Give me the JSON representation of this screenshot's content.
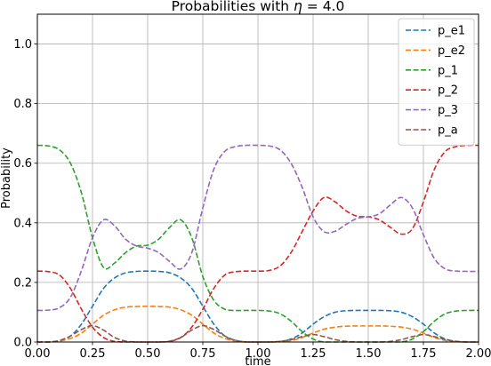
{
  "chart_data": {
    "type": "line",
    "title_prefix": "Probabilities with ",
    "title_symbol": "η",
    "title_suffix": " = 4.0",
    "xlabel": "time",
    "ylabel": "Probability",
    "xlim": [
      0.0,
      2.0
    ],
    "ylim": [
      0.0,
      1.1
    ],
    "xticks": [
      0.0,
      0.25,
      0.5,
      0.75,
      1.0,
      1.25,
      1.5,
      1.75,
      2.0
    ],
    "xtick_labels": [
      "0.00",
      "0.25",
      "0.50",
      "0.75",
      "1.00",
      "1.25",
      "1.50",
      "1.75",
      "2.00"
    ],
    "yticks": [
      0.0,
      0.2,
      0.4,
      0.6,
      0.8,
      1.0
    ],
    "ytick_labels": [
      "0.0",
      "0.2",
      "0.4",
      "0.6",
      "0.8",
      "1.0"
    ],
    "grid": true,
    "legend_position": "top-right",
    "line_style": "dashed",
    "series": [
      {
        "name": "p_e1",
        "color": "#1f77b4",
        "x": [
          0.0,
          0.05,
          0.1,
          0.15,
          0.2,
          0.25,
          0.3,
          0.35,
          0.4,
          0.45,
          0.5,
          0.55,
          0.6,
          0.65,
          0.7,
          0.75,
          0.8,
          0.85,
          0.9,
          0.95,
          1.0,
          1.05,
          1.1,
          1.15,
          1.2,
          1.25,
          1.3,
          1.35,
          1.4,
          1.45,
          1.5,
          1.55,
          1.6,
          1.65,
          1.7,
          1.75,
          1.8,
          1.85,
          1.9,
          1.95,
          2.0
        ],
        "y": [
          0.0,
          0.0,
          0.005,
          0.02,
          0.06,
          0.12,
          0.18,
          0.215,
          0.232,
          0.237,
          0.238,
          0.237,
          0.232,
          0.215,
          0.18,
          0.12,
          0.06,
          0.02,
          0.005,
          0.0,
          0.0,
          0.0,
          0.002,
          0.01,
          0.03,
          0.06,
          0.085,
          0.1,
          0.105,
          0.106,
          0.106,
          0.106,
          0.105,
          0.1,
          0.085,
          0.06,
          0.03,
          0.01,
          0.002,
          0.0,
          0.0
        ]
      },
      {
        "name": "p_e2",
        "color": "#ff7f0e",
        "x": [
          0.0,
          0.05,
          0.1,
          0.15,
          0.2,
          0.25,
          0.3,
          0.35,
          0.4,
          0.45,
          0.5,
          0.55,
          0.6,
          0.65,
          0.7,
          0.75,
          0.8,
          0.85,
          0.9,
          0.95,
          1.0,
          1.05,
          1.1,
          1.15,
          1.2,
          1.25,
          1.3,
          1.35,
          1.4,
          1.45,
          1.5,
          1.55,
          1.6,
          1.65,
          1.7,
          1.75,
          1.8,
          1.85,
          1.9,
          1.95,
          2.0
        ],
        "y": [
          0.0,
          0.0,
          0.003,
          0.012,
          0.03,
          0.06,
          0.09,
          0.108,
          0.117,
          0.119,
          0.12,
          0.119,
          0.117,
          0.108,
          0.09,
          0.06,
          0.03,
          0.012,
          0.003,
          0.0,
          0.0,
          0.0,
          0.001,
          0.005,
          0.015,
          0.03,
          0.043,
          0.05,
          0.053,
          0.054,
          0.054,
          0.054,
          0.053,
          0.05,
          0.043,
          0.03,
          0.015,
          0.005,
          0.001,
          0.0,
          0.0
        ]
      },
      {
        "name": "p_1",
        "color": "#2ca02c",
        "x": [
          0.0,
          0.05,
          0.1,
          0.15,
          0.2,
          0.25,
          0.3,
          0.35,
          0.4,
          0.45,
          0.5,
          0.55,
          0.6,
          0.65,
          0.7,
          0.75,
          0.8,
          0.85,
          0.9,
          0.95,
          1.0,
          1.05,
          1.1,
          1.15,
          1.2,
          1.25,
          1.3,
          1.35,
          1.4,
          1.45,
          1.5,
          1.55,
          1.6,
          1.65,
          1.7,
          1.75,
          1.8,
          1.85,
          1.9,
          1.95,
          2.0
        ],
        "y": [
          0.66,
          0.658,
          0.645,
          0.6,
          0.5,
          0.35,
          0.25,
          0.265,
          0.3,
          0.322,
          0.325,
          0.345,
          0.385,
          0.41,
          0.35,
          0.22,
          0.14,
          0.11,
          0.106,
          0.106,
          0.106,
          0.104,
          0.095,
          0.07,
          0.035,
          0.01,
          0.0,
          0.0,
          0.0,
          0.0,
          0.0,
          0.0,
          0.0,
          0.0,
          0.01,
          0.035,
          0.07,
          0.095,
          0.104,
          0.106,
          0.106
        ]
      },
      {
        "name": "p_2",
        "color": "#d62728",
        "x": [
          0.0,
          0.05,
          0.1,
          0.15,
          0.2,
          0.25,
          0.3,
          0.35,
          0.4,
          0.45,
          0.5,
          0.55,
          0.6,
          0.65,
          0.7,
          0.75,
          0.8,
          0.85,
          0.9,
          0.95,
          1.0,
          1.05,
          1.1,
          1.15,
          1.2,
          1.25,
          1.3,
          1.35,
          1.4,
          1.45,
          1.5,
          1.55,
          1.6,
          1.65,
          1.7,
          1.75,
          1.8,
          1.85,
          1.9,
          1.95,
          2.0
        ],
        "y": [
          0.238,
          0.236,
          0.225,
          0.18,
          0.11,
          0.05,
          0.015,
          0.002,
          0.0,
          0.0,
          0.0,
          0.0,
          0.002,
          0.015,
          0.05,
          0.11,
          0.18,
          0.225,
          0.236,
          0.238,
          0.238,
          0.24,
          0.255,
          0.3,
          0.37,
          0.44,
          0.485,
          0.47,
          0.44,
          0.422,
          0.42,
          0.41,
          0.385,
          0.362,
          0.38,
          0.47,
          0.58,
          0.64,
          0.656,
          0.66,
          0.66
        ]
      },
      {
        "name": "p_3",
        "color": "#9467bd",
        "x": [
          0.0,
          0.05,
          0.1,
          0.15,
          0.2,
          0.25,
          0.3,
          0.35,
          0.4,
          0.45,
          0.5,
          0.55,
          0.6,
          0.65,
          0.7,
          0.75,
          0.8,
          0.85,
          0.9,
          0.95,
          1.0,
          1.05,
          1.1,
          1.15,
          1.2,
          1.25,
          1.3,
          1.35,
          1.4,
          1.45,
          1.5,
          1.55,
          1.6,
          1.65,
          1.7,
          1.75,
          1.8,
          1.85,
          1.9,
          1.95,
          2.0
        ],
        "y": [
          0.106,
          0.107,
          0.115,
          0.15,
          0.24,
          0.35,
          0.41,
          0.39,
          0.345,
          0.322,
          0.315,
          0.3,
          0.27,
          0.245,
          0.3,
          0.45,
          0.58,
          0.64,
          0.656,
          0.66,
          0.66,
          0.658,
          0.645,
          0.6,
          0.52,
          0.42,
          0.37,
          0.372,
          0.395,
          0.415,
          0.42,
          0.43,
          0.46,
          0.485,
          0.45,
          0.36,
          0.28,
          0.245,
          0.238,
          0.237,
          0.237
        ]
      },
      {
        "name": "p_a",
        "color": "#8c564b",
        "x": [
          0.0,
          0.05,
          0.1,
          0.15,
          0.2,
          0.25,
          0.3,
          0.35,
          0.4,
          0.45,
          0.5,
          0.55,
          0.6,
          0.65,
          0.7,
          0.75,
          0.8,
          0.85,
          0.9,
          0.95,
          1.0,
          1.05,
          1.1,
          1.15,
          1.2,
          1.25,
          1.3,
          1.35,
          1.4,
          1.45,
          1.5,
          1.55,
          1.6,
          1.65,
          1.7,
          1.75,
          1.8,
          1.85,
          1.9,
          1.95,
          2.0
        ],
        "y": [
          0.0,
          0.0,
          0.005,
          0.02,
          0.042,
          0.055,
          0.04,
          0.015,
          0.003,
          0.0,
          0.0,
          0.0,
          0.003,
          0.015,
          0.04,
          0.055,
          0.042,
          0.02,
          0.005,
          0.0,
          0.0,
          0.0,
          0.002,
          0.008,
          0.018,
          0.025,
          0.018,
          0.008,
          0.002,
          0.0,
          0.0,
          0.0,
          0.002,
          0.008,
          0.018,
          0.025,
          0.018,
          0.008,
          0.002,
          0.0,
          0.0
        ]
      }
    ]
  }
}
